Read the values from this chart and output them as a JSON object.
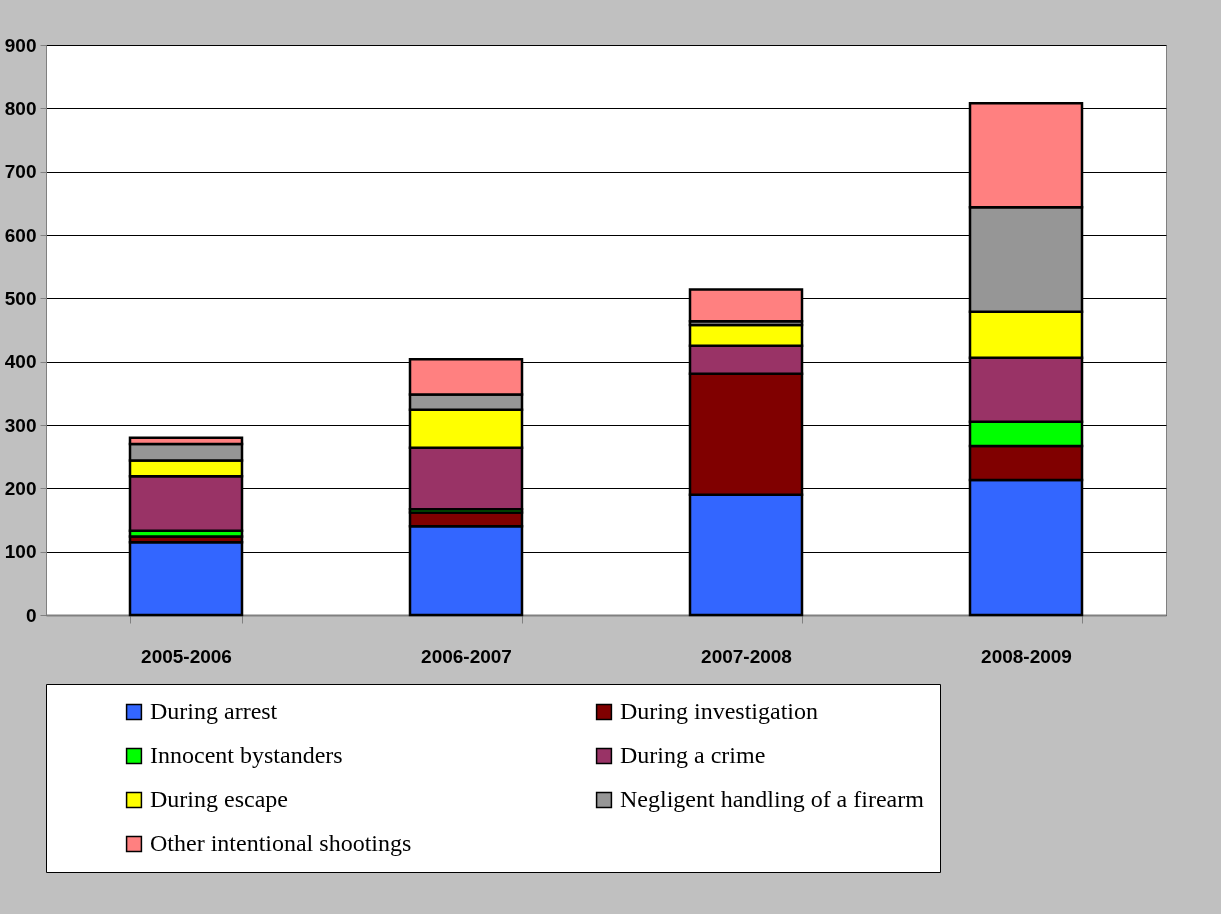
{
  "chart_data": {
    "type": "bar",
    "stacked": true,
    "categories": [
      "2005-2006",
      "2006-2007",
      "2007-2008",
      "2008-2009"
    ],
    "series": [
      {
        "name": "During arrest",
        "color": "#3366ff",
        "values": [
          115,
          140,
          190,
          213
        ]
      },
      {
        "name": "During investigation",
        "color": "#800000",
        "values": [
          9,
          22,
          191,
          54
        ]
      },
      {
        "name": "Innocent bystanders",
        "color": "#00ff00",
        "values": [
          9,
          5,
          null,
          38
        ]
      },
      {
        "name": "During a crime",
        "color": "#993366",
        "values": [
          86,
          97,
          44,
          101
        ]
      },
      {
        "name": "During escape",
        "color": "#ffff00",
        "values": [
          25,
          60,
          33,
          73
        ]
      },
      {
        "name": "Negligent handling of a firearm",
        "color": "#969696",
        "values": [
          26,
          24,
          6,
          165
        ]
      },
      {
        "name": "Other intentional shootings",
        "color": "#ff8080",
        "values": [
          10,
          56,
          50,
          164
        ]
      }
    ],
    "ylim": [
      0,
      900
    ],
    "yticks": [
      0,
      100,
      200,
      300,
      400,
      500,
      600,
      700,
      800,
      900
    ],
    "grid": "y",
    "legend": "bottom"
  }
}
